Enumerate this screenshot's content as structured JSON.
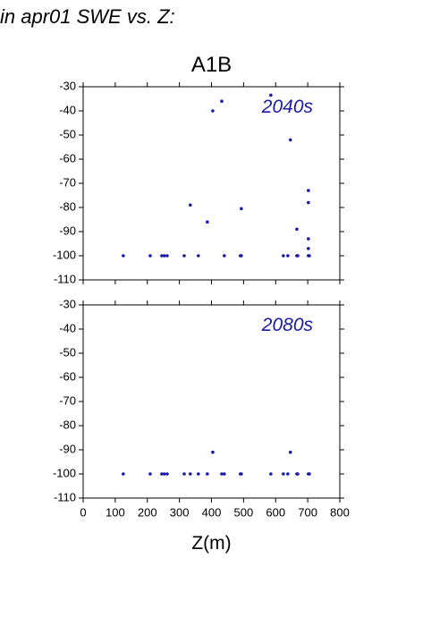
{
  "title": "in apr01 SWE vs. Z:",
  "chart_data": [
    {
      "type": "scatter",
      "title": "A1B",
      "annotation": "2040s",
      "color": "#1a1aa6",
      "x": [
        125,
        209,
        245,
        253,
        262,
        315,
        359,
        440,
        490,
        493,
        624,
        638,
        666,
        669,
        702,
        705,
        432,
        404,
        585,
        646,
        702,
        702,
        334,
        387,
        493,
        666,
        702,
        702
      ],
      "y": [
        -100,
        -100,
        -100,
        -100,
        -100,
        -100,
        -100,
        -100,
        -100,
        -100,
        -100,
        -100,
        -100,
        -100,
        -100,
        -100,
        -36,
        -40,
        -33.5,
        -52,
        -73,
        -78,
        -79,
        -86,
        -80.5,
        -89,
        -93,
        -97
      ],
      "xlim": [
        0,
        800
      ],
      "ylim": [
        -110,
        -30
      ],
      "xticks": [
        0,
        100,
        200,
        300,
        400,
        500,
        600,
        700,
        800
      ],
      "yticks": [
        -110,
        -100,
        -90,
        -80,
        -70,
        -60,
        -50,
        -40,
        -30
      ]
    },
    {
      "type": "scatter",
      "annotation": "2080s",
      "color": "#1a1aa6",
      "xlabel": "Z(m)",
      "x": [
        125,
        209,
        245,
        253,
        262,
        315,
        334,
        359,
        387,
        432,
        440,
        490,
        493,
        585,
        624,
        638,
        666,
        669,
        702,
        705,
        404,
        646
      ],
      "y": [
        -100,
        -100,
        -100,
        -100,
        -100,
        -100,
        -100,
        -100,
        -100,
        -100,
        -100,
        -100,
        -100,
        -100,
        -100,
        -100,
        -100,
        -100,
        -100,
        -100,
        -91,
        -91
      ],
      "xlim": [
        0,
        800
      ],
      "ylim": [
        -110,
        -30
      ],
      "xticks": [
        0,
        100,
        200,
        300,
        400,
        500,
        600,
        700,
        800
      ],
      "yticks": [
        -110,
        -100,
        -90,
        -80,
        -70,
        -60,
        -50,
        -40,
        -30
      ]
    }
  ]
}
